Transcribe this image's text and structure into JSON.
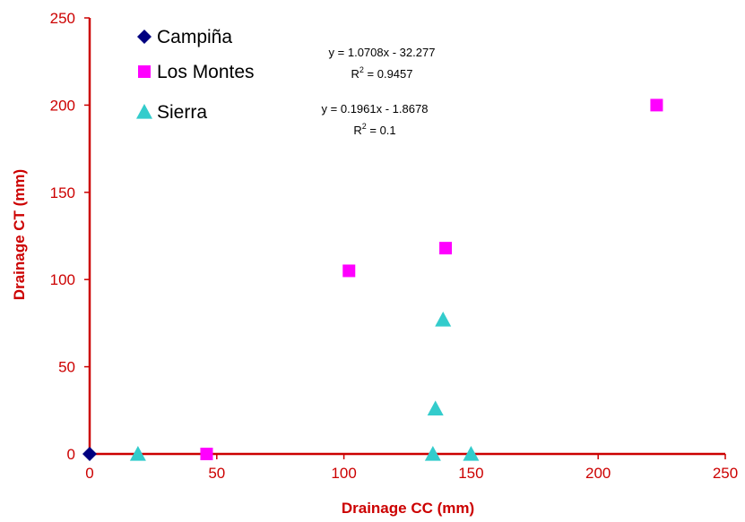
{
  "chart_data": {
    "type": "scatter",
    "xlabel": "Drainage CC (mm)",
    "ylabel": "Drainage CT (mm)",
    "xlim": [
      0,
      250
    ],
    "ylim": [
      0,
      250
    ],
    "x_ticks": [
      "0",
      "50",
      "100",
      "150",
      "200",
      "250"
    ],
    "y_ticks": [
      "0",
      "50",
      "100",
      "150",
      "200",
      "250"
    ],
    "grid": false,
    "legend_position": "top-left",
    "series": [
      {
        "name": "Campiña",
        "marker": "diamond",
        "color": "#000080",
        "points": [
          [
            0,
            0
          ]
        ]
      },
      {
        "name": "Los Montes",
        "marker": "square",
        "color": "#ff00ff",
        "points": [
          [
            46,
            0
          ],
          [
            102,
            105
          ],
          [
            140,
            118
          ],
          [
            223,
            200
          ]
        ]
      },
      {
        "name": "Sierra",
        "marker": "triangle",
        "color": "#33cccc",
        "points": [
          [
            19,
            0
          ],
          [
            135,
            0
          ],
          [
            136,
            26
          ],
          [
            139,
            77
          ],
          [
            150,
            0
          ]
        ]
      }
    ],
    "annotations": [
      {
        "line1": "y = 1.0708x - 32.277",
        "r2_value": "= 0.9457"
      },
      {
        "line1": "y = 0.1961x - 1.8678",
        "r2_value": "= 0.1"
      }
    ],
    "axis_color": "#cc0000"
  }
}
